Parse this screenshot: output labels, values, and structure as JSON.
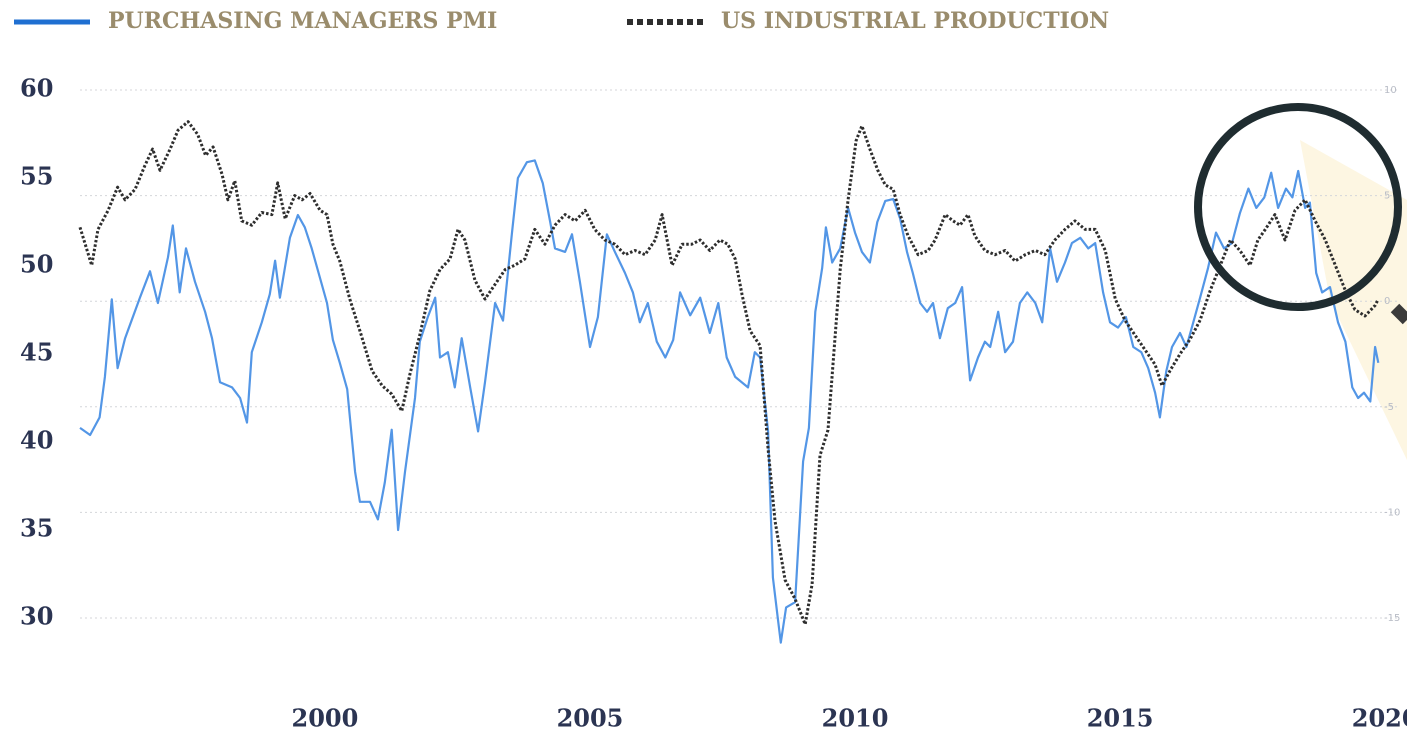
{
  "chart_data": {
    "type": "line",
    "legend": "top-left",
    "grid": true,
    "xlim": [
      1995.38,
      2020.28
    ],
    "xticks": [
      2000,
      2005,
      2010,
      2015,
      2020
    ],
    "ylim": [
      30,
      60
    ],
    "yticks": [
      30,
      35,
      40,
      45,
      50,
      55,
      60
    ],
    "y2lim": [
      -15,
      10
    ],
    "y2ticks": [
      -15,
      -10,
      -5,
      0,
      5,
      10
    ],
    "series": [
      {
        "name": "PURCHASING MANAGERS PMI",
        "color": "#5396e6",
        "dash": false,
        "x": [
          1995.38,
          1995.57,
          1995.75,
          1995.85,
          1995.98,
          1996.09,
          1996.23,
          1996.51,
          1996.7,
          1996.85,
          1997.04,
          1997.13,
          1997.26,
          1997.38,
          1997.55,
          1997.74,
          1997.87,
          1998.02,
          1998.25,
          1998.4,
          1998.53,
          1998.62,
          1998.81,
          1998.96,
          1999.06,
          1999.15,
          1999.34,
          1999.49,
          1999.62,
          1999.75,
          1999.91,
          2000.04,
          2000.15,
          2000.28,
          2000.42,
          2000.57,
          2000.66,
          2000.85,
          2001.0,
          2001.13,
          2001.26,
          2001.38,
          2001.51,
          2001.7,
          2001.79,
          2001.94,
          2002.08,
          2002.17,
          2002.32,
          2002.45,
          2002.58,
          2002.74,
          2002.89,
          2003.02,
          2003.21,
          2003.36,
          2003.53,
          2003.64,
          2003.81,
          2003.96,
          2004.11,
          2004.25,
          2004.34,
          2004.53,
          2004.66,
          2004.81,
          2005.0,
          2005.15,
          2005.32,
          2005.47,
          2005.66,
          2005.81,
          2005.94,
          2006.09,
          2006.26,
          2006.42,
          2006.57,
          2006.7,
          2006.89,
          2007.08,
          2007.26,
          2007.42,
          2007.58,
          2007.74,
          2007.98,
          2008.11,
          2008.21,
          2008.36,
          2008.45,
          2008.55,
          2008.6,
          2008.7,
          2008.87,
          2009.02,
          2009.13,
          2009.25,
          2009.38,
          2009.45,
          2009.57,
          2009.72,
          2009.87,
          2010.0,
          2010.13,
          2010.28,
          2010.42,
          2010.57,
          2010.72,
          2010.85,
          2010.98,
          2011.09,
          2011.23,
          2011.36,
          2011.47,
          2011.6,
          2011.75,
          2011.89,
          2012.02,
          2012.17,
          2012.32,
          2012.45,
          2012.55,
          2012.7,
          2012.83,
          2012.98,
          2013.11,
          2013.25,
          2013.4,
          2013.53,
          2013.68,
          2013.81,
          2013.96,
          2014.09,
          2014.25,
          2014.4,
          2014.53,
          2014.68,
          2014.81,
          2014.96,
          2015.11,
          2015.25,
          2015.4,
          2015.53,
          2015.66,
          2015.75,
          2015.87,
          2015.98,
          2016.13,
          2016.25,
          2016.38,
          2016.51,
          2016.66,
          2016.81,
          2016.96,
          2017.11,
          2017.26,
          2017.42,
          2017.57,
          2017.72,
          2017.85,
          2017.98,
          2018.13,
          2018.25,
          2018.36,
          2018.49,
          2018.58,
          2018.7,
          2018.81,
          2018.96,
          2019.11,
          2019.25,
          2019.38,
          2019.49,
          2019.6,
          2019.72,
          2019.81,
          2019.87
        ],
        "values": [
          40.8,
          40.4,
          41.4,
          43.7,
          48.1,
          44.2,
          45.9,
          48.2,
          49.7,
          47.9,
          50.5,
          52.3,
          48.5,
          51.0,
          49.1,
          47.4,
          45.9,
          43.4,
          43.1,
          42.5,
          41.1,
          45.1,
          46.8,
          48.4,
          50.3,
          48.2,
          51.6,
          52.9,
          52.2,
          51.0,
          49.3,
          47.9,
          45.8,
          44.5,
          43.0,
          38.3,
          36.6,
          36.6,
          35.6,
          37.7,
          40.7,
          35.0,
          38.3,
          42.5,
          45.7,
          47.1,
          48.2,
          44.8,
          45.1,
          43.1,
          45.9,
          43.1,
          40.6,
          43.4,
          47.9,
          46.9,
          51.9,
          55.0,
          55.9,
          56.0,
          54.7,
          52.5,
          51.0,
          50.8,
          51.8,
          49.1,
          45.4,
          47.1,
          51.8,
          50.8,
          49.6,
          48.5,
          46.8,
          47.9,
          45.7,
          44.8,
          45.8,
          48.5,
          47.2,
          48.2,
          46.2,
          47.9,
          44.8,
          43.7,
          43.1,
          45.1,
          44.8,
          40.6,
          32.3,
          29.8,
          28.6,
          30.6,
          30.9,
          38.9,
          40.8,
          47.4,
          49.9,
          52.2,
          50.2,
          51.0,
          53.3,
          51.9,
          50.8,
          50.2,
          52.5,
          53.7,
          53.8,
          52.7,
          50.8,
          49.6,
          47.9,
          47.4,
          47.9,
          45.9,
          47.6,
          47.9,
          48.8,
          43.5,
          44.8,
          45.7,
          45.4,
          47.4,
          45.1,
          45.7,
          47.9,
          48.5,
          47.9,
          46.8,
          51.0,
          49.1,
          50.2,
          51.3,
          51.6,
          51.0,
          51.3,
          48.5,
          46.8,
          46.5,
          47.1,
          45.4,
          45.1,
          44.2,
          42.8,
          41.4,
          44.0,
          45.4,
          46.2,
          45.4,
          46.8,
          48.2,
          49.9,
          51.9,
          51.0,
          51.3,
          53.0,
          54.4,
          53.3,
          53.9,
          55.3,
          53.3,
          54.4,
          53.9,
          55.4,
          53.3,
          53.6,
          49.6,
          48.5,
          48.8,
          46.8,
          45.7,
          43.1,
          42.5,
          42.8,
          42.3,
          45.4,
          44.5
        ]
      },
      {
        "name": "US INDUSTRIAL PRODUCTION",
        "color": "#2e2e2e",
        "dash": true,
        "axis": "y2",
        "x": [
          1995.38,
          1995.6,
          1995.72,
          1995.91,
          1996.09,
          1996.23,
          1996.42,
          1996.6,
          1996.75,
          1996.89,
          1997.08,
          1997.23,
          1997.42,
          1997.6,
          1997.75,
          1997.89,
          1998.06,
          1998.17,
          1998.3,
          1998.43,
          1998.62,
          1998.81,
          1999.0,
          1999.11,
          1999.25,
          1999.43,
          1999.57,
          1999.72,
          1999.91,
          2000.04,
          2000.15,
          2000.28,
          2000.47,
          2000.66,
          2000.89,
          2001.08,
          2001.26,
          2001.45,
          2001.6,
          2001.79,
          2001.98,
          2002.17,
          2002.36,
          2002.51,
          2002.64,
          2002.83,
          2003.02,
          2003.21,
          2003.4,
          2003.58,
          2003.77,
          2003.96,
          2004.15,
          2004.34,
          2004.53,
          2004.72,
          2004.91,
          2005.09,
          2005.28,
          2005.47,
          2005.66,
          2005.85,
          2006.04,
          2006.23,
          2006.36,
          2006.55,
          2006.74,
          2006.92,
          2007.08,
          2007.26,
          2007.45,
          2007.6,
          2007.74,
          2007.87,
          2008.02,
          2008.21,
          2008.36,
          2008.49,
          2008.68,
          2008.87,
          2009.06,
          2009.19,
          2009.34,
          2009.49,
          2009.62,
          2009.72,
          2009.87,
          2010.02,
          2010.13,
          2010.28,
          2010.43,
          2010.57,
          2010.72,
          2010.85,
          2011.0,
          2011.19,
          2011.38,
          2011.51,
          2011.7,
          2011.85,
          2011.98,
          2012.13,
          2012.26,
          2012.45,
          2012.64,
          2012.83,
          2013.02,
          2013.21,
          2013.4,
          2013.58,
          2013.77,
          2013.96,
          2014.15,
          2014.34,
          2014.53,
          2014.72,
          2014.91,
          2015.09,
          2015.28,
          2015.47,
          2015.66,
          2015.79,
          2015.94,
          2016.13,
          2016.32,
          2016.51,
          2016.7,
          2016.89,
          2017.08,
          2017.26,
          2017.45,
          2017.6,
          2017.74,
          2017.92,
          2018.11,
          2018.3,
          2018.49,
          2018.68,
          2018.87,
          2019.06,
          2019.25,
          2019.43,
          2019.62,
          2019.81,
          2019.87
        ],
        "values": [
          3.5,
          1.7,
          3.4,
          4.3,
          5.4,
          4.8,
          5.3,
          6.4,
          7.2,
          6.2,
          7.2,
          8.1,
          8.5,
          7.9,
          6.9,
          7.3,
          6.0,
          4.8,
          5.7,
          3.8,
          3.6,
          4.2,
          4.1,
          5.6,
          3.9,
          5.0,
          4.8,
          5.1,
          4.3,
          4.1,
          2.7,
          1.9,
          0.1,
          -1.4,
          -3.3,
          -4.0,
          -4.4,
          -5.2,
          -3.5,
          -1.6,
          0.5,
          1.5,
          2.0,
          3.4,
          2.9,
          1.0,
          0.1,
          0.8,
          1.5,
          1.7,
          2.0,
          3.4,
          2.7,
          3.6,
          4.1,
          3.8,
          4.3,
          3.4,
          2.9,
          2.7,
          2.2,
          2.4,
          2.2,
          2.9,
          4.1,
          1.7,
          2.7,
          2.7,
          2.9,
          2.4,
          2.9,
          2.7,
          2.0,
          0.3,
          -1.4,
          -2.1,
          -7.0,
          -10.4,
          -13.2,
          -14.1,
          -15.3,
          -13.4,
          -7.3,
          -6.1,
          -1.8,
          1.5,
          4.8,
          7.6,
          8.3,
          7.2,
          6.2,
          5.5,
          5.3,
          4.1,
          3.1,
          2.2,
          2.4,
          2.9,
          4.1,
          3.8,
          3.6,
          4.1,
          3.1,
          2.4,
          2.2,
          2.4,
          1.9,
          2.2,
          2.4,
          2.2,
          2.9,
          3.4,
          3.8,
          3.4,
          3.4,
          2.4,
          0.1,
          -0.9,
          -1.6,
          -2.3,
          -3.0,
          -4.0,
          -3.3,
          -2.5,
          -1.8,
          -0.9,
          0.5,
          1.7,
          2.9,
          2.4,
          1.7,
          2.9,
          3.4,
          4.1,
          2.9,
          4.3,
          4.8,
          3.8,
          2.9,
          1.7,
          0.5,
          -0.4,
          -0.7,
          -0.2,
          0.1
        ]
      }
    ]
  }
}
